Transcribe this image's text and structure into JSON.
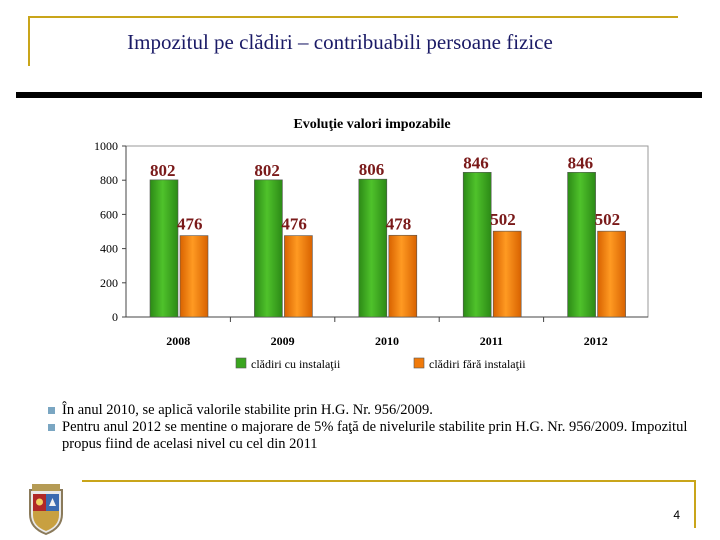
{
  "slide": {
    "title": "Impozitul pe clădiri – contribuabili persoane fizice",
    "page_number": "4",
    "bullets": [
      "În anul 2010, se aplică valorile stabilite prin H.G. Nr. 956/2009.",
      "Pentru anul 2012  se mentine o majorare de 5% faţă de nivelurile stabilite prin H.G. Nr. 956/2009. Impozitul propus fiind de acelasi nivel cu cel din 2011"
    ],
    "crest_icon": "city-coat-of-arms"
  },
  "chart_data": {
    "type": "bar",
    "title": "Evoluţie valori impozabile",
    "categories": [
      "2008",
      "2009",
      "2010",
      "2011",
      "2012"
    ],
    "series": [
      {
        "name": "clădiri cu instalaţii",
        "values": [
          802,
          802,
          806,
          846,
          846
        ],
        "color": "#3aa51f"
      },
      {
        "name": "clădiri fără instalaţii",
        "values": [
          476,
          476,
          478,
          502,
          502
        ],
        "color": "#f07a0a"
      }
    ],
    "ylim": [
      0,
      1000
    ],
    "yticks": [
      "0",
      "200",
      "400",
      "600",
      "800",
      "1000"
    ],
    "grid": false,
    "legend": "bottom",
    "data_label_color": "#7a1a1a"
  }
}
